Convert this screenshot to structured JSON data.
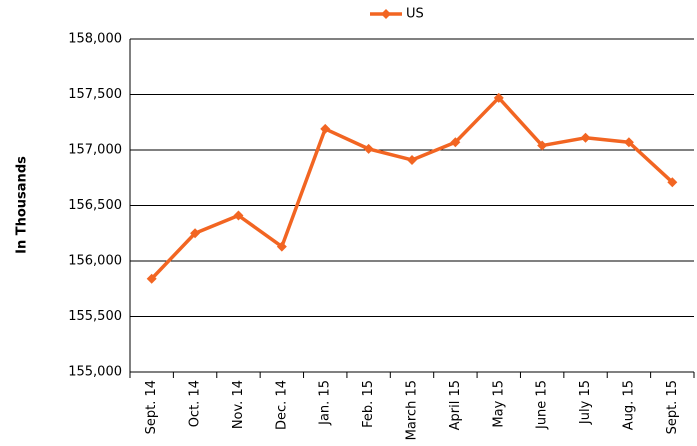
{
  "chart_data": {
    "type": "line",
    "y_label": "In Thousands",
    "categories": [
      "Sept. 14",
      "Oct. 14",
      "Nov. 14",
      "Dec. 14",
      "Jan. 15",
      "Feb. 15",
      "March 15",
      "April 15",
      "May 15",
      "June 15",
      "July 15",
      "Aug. 15",
      "Sept. 15"
    ],
    "series": [
      {
        "name": "US",
        "color": "#f26522",
        "values": [
          155840,
          156250,
          156410,
          156130,
          157190,
          157010,
          156910,
          157070,
          157470,
          157040,
          157110,
          157070,
          156710
        ]
      }
    ],
    "ylim": [
      155000,
      158000
    ],
    "yticks": [
      {
        "value": 155000,
        "label": "155,000"
      },
      {
        "value": 155500,
        "label": "155,500"
      },
      {
        "value": 156000,
        "label": "156,000"
      },
      {
        "value": 156500,
        "label": "156,500"
      },
      {
        "value": 157000,
        "label": "157,000"
      },
      {
        "value": 157500,
        "label": "157,500"
      },
      {
        "value": 158000,
        "label": "158,000"
      }
    ],
    "grid": true,
    "legend": "top"
  }
}
